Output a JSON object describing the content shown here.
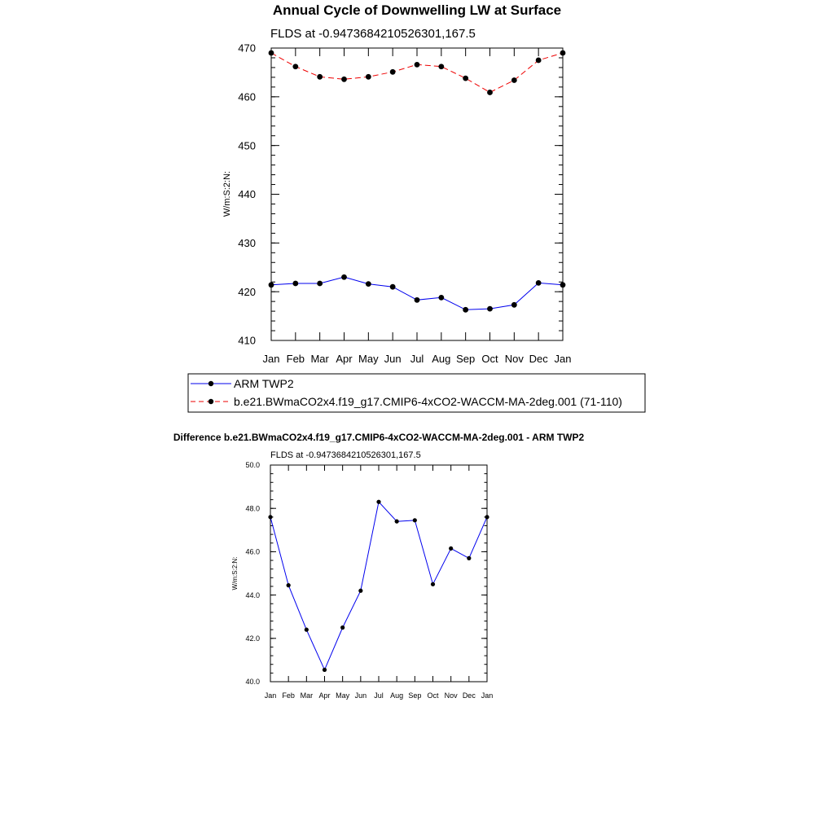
{
  "chart_data": [
    {
      "type": "line",
      "title": "Annual Cycle of Downwelling LW at Surface",
      "subtitle": "FLDS at -0.9473684210526301,167.5",
      "ylabel": "W/m:S:2:N:",
      "xlabel": "",
      "categories": [
        "Jan",
        "Feb",
        "Mar",
        "Apr",
        "May",
        "Jun",
        "Jul",
        "Aug",
        "Sep",
        "Oct",
        "Nov",
        "Dec",
        "Jan"
      ],
      "ylim": [
        410,
        470
      ],
      "yticks": [
        410,
        420,
        430,
        440,
        450,
        460,
        470
      ],
      "ytick_labels": [
        "410",
        "420",
        "430",
        "440",
        "450",
        "460",
        "470"
      ],
      "grid": false,
      "series": [
        {
          "name": "ARM TWP2",
          "color": "#0000ee",
          "dash": "solid",
          "values": [
            421.4,
            421.7,
            421.7,
            423.0,
            421.6,
            421.0,
            418.3,
            418.8,
            416.3,
            416.5,
            417.3,
            421.8,
            421.4
          ]
        },
        {
          "name": "b.e21.BWmaCO2x4.f19_g17.CMIP6-4xCO2-WACCM-MA-2deg.001 (71-110)",
          "color": "#ee0000",
          "dash": "dashed",
          "values": [
            469.0,
            466.2,
            464.1,
            463.6,
            464.1,
            465.1,
            466.6,
            466.2,
            463.8,
            460.9,
            463.4,
            467.5,
            469.0
          ]
        }
      ]
    },
    {
      "type": "line",
      "title": "Difference b.e21.BWmaCO2x4.f19_g17.CMIP6-4xCO2-WACCM-MA-2deg.001 - ARM TWP2",
      "subtitle": "FLDS at -0.9473684210526301,167.5",
      "ylabel": "W/m:S:2:N:",
      "xlabel": "",
      "categories": [
        "Jan",
        "Feb",
        "Mar",
        "Apr",
        "May",
        "Jun",
        "Jul",
        "Aug",
        "Sep",
        "Oct",
        "Nov",
        "Dec",
        "Jan"
      ],
      "ylim": [
        40,
        50
      ],
      "yticks": [
        40,
        42,
        44,
        46,
        48,
        50
      ],
      "ytick_labels": [
        "40.0",
        "42.0",
        "44.0",
        "46.0",
        "48.0",
        "50.0"
      ],
      "grid": false,
      "series": [
        {
          "name": "Difference",
          "color": "#0000ee",
          "dash": "solid",
          "values": [
            47.6,
            44.45,
            42.4,
            40.55,
            42.5,
            44.2,
            48.3,
            47.4,
            47.45,
            44.5,
            46.15,
            45.7,
            47.6
          ]
        }
      ]
    }
  ],
  "legend": {
    "entries": [
      "ARM TWP2",
      "b.e21.BWmaCO2x4.f19_g17.CMIP6-4xCO2-WACCM-MA-2deg.001 (71-110)"
    ]
  }
}
